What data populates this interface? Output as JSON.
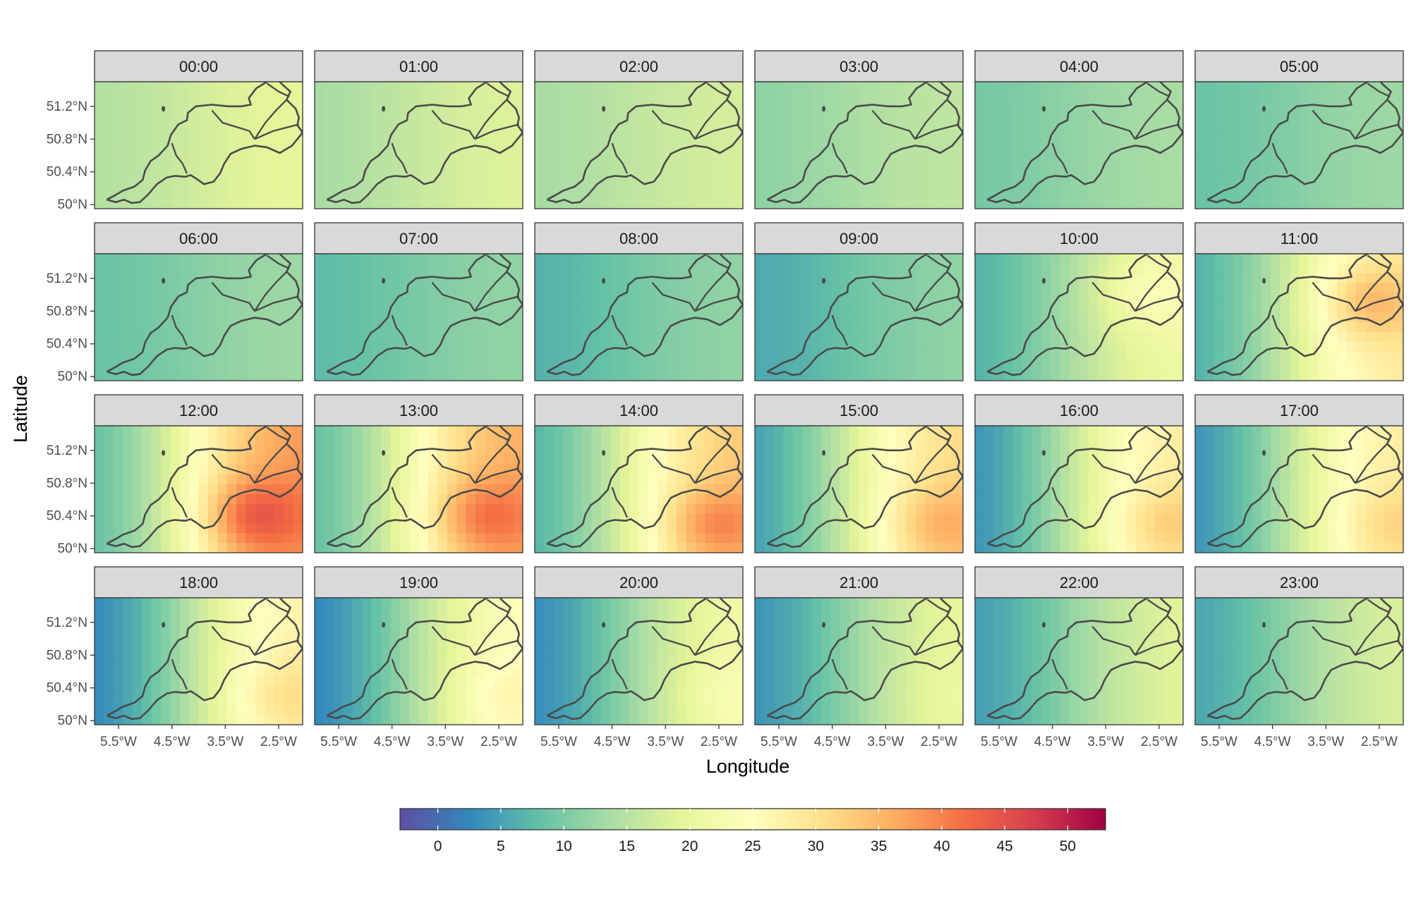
{
  "chart_data": {
    "type": "heatmap",
    "title": "",
    "xlabel": "Longitude",
    "ylabel": "Latitude",
    "facet_labels": [
      "00:00",
      "01:00",
      "02:00",
      "03:00",
      "04:00",
      "05:00",
      "06:00",
      "07:00",
      "08:00",
      "09:00",
      "10:00",
      "11:00",
      "12:00",
      "13:00",
      "14:00",
      "15:00",
      "16:00",
      "17:00",
      "18:00",
      "19:00",
      "20:00",
      "21:00",
      "22:00",
      "23:00"
    ],
    "x_ticks": [
      {
        "value": -5.5,
        "label": "5.5°W"
      },
      {
        "value": -4.5,
        "label": "4.5°W"
      },
      {
        "value": -3.5,
        "label": "3.5°W"
      },
      {
        "value": -2.5,
        "label": "2.5°W"
      }
    ],
    "y_ticks": [
      {
        "value": 50.0,
        "label": "50°N"
      },
      {
        "value": 50.4,
        "label": "50.4°N"
      },
      {
        "value": 50.8,
        "label": "50.8°N"
      },
      {
        "value": 51.2,
        "label": "51.2°N"
      }
    ],
    "xlim": [
      -5.95,
      -2.05
    ],
    "ylim": [
      49.95,
      51.5
    ],
    "grid_dims": {
      "cols": 22,
      "rows": 13
    },
    "legend": {
      "position": "bottom",
      "range": [
        -3,
        53
      ],
      "ticks": [
        0,
        5,
        10,
        15,
        20,
        25,
        30,
        35,
        40,
        45,
        50
      ],
      "palette": [
        "#5E4FA2",
        "#3288BD",
        "#66C2A5",
        "#ABDDA4",
        "#E6F598",
        "#FFFFBF",
        "#FEE08B",
        "#FDAE61",
        "#F46D43",
        "#D53E4F",
        "#9E0142"
      ]
    },
    "hourly_fields": [
      {
        "hour": "00:00",
        "west": 14,
        "east": 20,
        "peak": 0,
        "peak_lon": -3.0,
        "peak_lat": 50.4
      },
      {
        "hour": "01:00",
        "west": 13,
        "east": 19,
        "peak": 0,
        "peak_lon": -3.0,
        "peak_lat": 50.4
      },
      {
        "hour": "02:00",
        "west": 13,
        "east": 18,
        "peak": 0,
        "peak_lon": -3.0,
        "peak_lat": 50.4
      },
      {
        "hour": "03:00",
        "west": 11,
        "east": 16,
        "peak": 0,
        "peak_lon": -3.0,
        "peak_lat": 50.4
      },
      {
        "hour": "04:00",
        "west": 9,
        "east": 14,
        "peak": 0,
        "peak_lon": -3.0,
        "peak_lat": 50.4
      },
      {
        "hour": "05:00",
        "west": 8,
        "east": 13,
        "peak": 0,
        "peak_lon": -3.0,
        "peak_lat": 50.4
      },
      {
        "hour": "06:00",
        "west": 8,
        "east": 13,
        "peak": 0,
        "peak_lon": -3.0,
        "peak_lat": 50.4
      },
      {
        "hour": "07:00",
        "west": 7,
        "east": 12,
        "peak": 0,
        "peak_lon": -3.0,
        "peak_lat": 50.4
      },
      {
        "hour": "08:00",
        "west": 6,
        "east": 12,
        "peak": 0,
        "peak_lon": -3.0,
        "peak_lat": 50.4
      },
      {
        "hour": "09:00",
        "west": 5,
        "east": 12,
        "peak": 0,
        "peak_lon": -3.0,
        "peak_lat": 50.4
      },
      {
        "hour": "10:00",
        "west": 5,
        "east": 22,
        "peak": 4,
        "peak_lon": -2.8,
        "peak_lat": 51.0
      },
      {
        "hour": "11:00",
        "west": 4,
        "east": 30,
        "peak": 8,
        "peak_lon": -2.7,
        "peak_lat": 50.9
      },
      {
        "hour": "12:00",
        "west": 5,
        "east": 40,
        "peak": 10,
        "peak_lon": -3.0,
        "peak_lat": 50.4
      },
      {
        "hour": "13:00",
        "west": 5,
        "east": 38,
        "peak": 8,
        "peak_lon": -2.8,
        "peak_lat": 50.4
      },
      {
        "hour": "14:00",
        "west": 4,
        "east": 35,
        "peak": 8,
        "peak_lon": -2.6,
        "peak_lat": 50.3
      },
      {
        "hour": "15:00",
        "west": 2,
        "east": 33,
        "peak": 6,
        "peak_lon": -2.5,
        "peak_lat": 50.3
      },
      {
        "hour": "16:00",
        "west": 1,
        "east": 30,
        "peak": 5,
        "peak_lon": -2.4,
        "peak_lat": 50.3
      },
      {
        "hour": "17:00",
        "west": 1,
        "east": 30,
        "peak": 4,
        "peak_lon": -2.3,
        "peak_lat": 50.3
      },
      {
        "hour": "18:00",
        "west": 0,
        "east": 29,
        "peak": 4,
        "peak_lon": -2.4,
        "peak_lat": 50.3
      },
      {
        "hour": "19:00",
        "west": 0,
        "east": 26,
        "peak": 3,
        "peak_lon": -2.4,
        "peak_lat": 50.3
      },
      {
        "hour": "20:00",
        "west": 1,
        "east": 23,
        "peak": 2,
        "peak_lon": -2.4,
        "peak_lat": 50.3
      },
      {
        "hour": "21:00",
        "west": 2,
        "east": 21,
        "peak": 1,
        "peak_lon": -2.4,
        "peak_lat": 50.3
      },
      {
        "hour": "22:00",
        "west": 3,
        "east": 20,
        "peak": 0,
        "peak_lon": -2.4,
        "peak_lat": 50.3
      },
      {
        "hour": "23:00",
        "west": 4,
        "east": 19,
        "peak": 0,
        "peak_lon": -2.4,
        "peak_lat": 50.3
      }
    ]
  }
}
